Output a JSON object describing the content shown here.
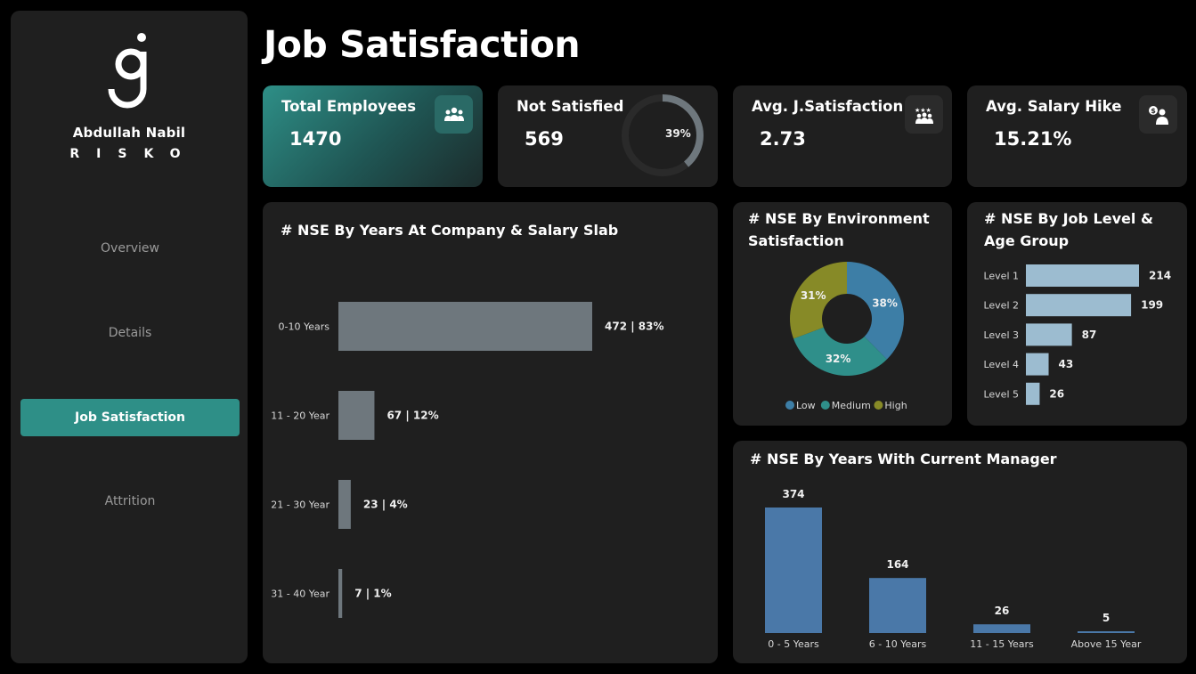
{
  "brand": {
    "name": "Abdullah Nabil",
    "subtitle": "RISKO"
  },
  "nav": [
    {
      "label": "Overview",
      "active": false
    },
    {
      "label": "Details",
      "active": false
    },
    {
      "label": "Job Satisfaction",
      "active": true
    },
    {
      "label": "Attrition",
      "active": false
    }
  ],
  "page_title": "Job Satisfaction",
  "kpis": {
    "total": {
      "title": "Total Employees",
      "value": "1470",
      "icon": "people-group-icon"
    },
    "not_satisfied": {
      "title": "Not Satisfied",
      "value": "569",
      "pct_label": "39%",
      "pct": 0.39
    },
    "avg_js": {
      "title": "Avg. J.Satisfaction",
      "value": "2.73",
      "icon": "star-team-icon"
    },
    "avg_hike": {
      "title": "Avg. Salary Hike",
      "value": "15.21%",
      "icon": "salary-person-icon"
    }
  },
  "colors": {
    "teal": "#2e8f87",
    "gray_bar": "#6e777d",
    "steel_blue": "#4a78a8",
    "light_blue": "#9cbcd0",
    "donut_low": "#3d7ea6",
    "donut_medium": "#2f8f8a",
    "donut_high": "#878a27"
  },
  "chart_data": [
    {
      "id": "years_company",
      "type": "bar",
      "orientation": "horizontal",
      "title": "# NSE By Years At Company & Salary Slab",
      "categories": [
        "0-10 Years",
        "11 - 20 Year",
        "21 - 30 Year",
        "31 - 40 Year"
      ],
      "values": [
        472,
        67,
        23,
        7
      ],
      "percents": [
        "83%",
        "12%",
        "4%",
        "1%"
      ]
    },
    {
      "id": "environment",
      "type": "pie",
      "title": "# NSE By Environment Satisfaction",
      "categories": [
        "Low",
        "Medium",
        "High"
      ],
      "values": [
        38,
        32,
        31
      ],
      "labels": [
        "38%",
        "32%",
        "31%"
      ],
      "legend": "bottom"
    },
    {
      "id": "job_level",
      "type": "bar",
      "orientation": "horizontal",
      "title": "# NSE By Job Level & Age Group",
      "categories": [
        "Level 1",
        "Level 2",
        "Level 3",
        "Level 4",
        "Level 5"
      ],
      "values": [
        214,
        199,
        87,
        43,
        26
      ]
    },
    {
      "id": "current_manager",
      "type": "bar",
      "title": "# NSE By Years With Current Manager",
      "categories": [
        "0 - 5 Years",
        "6 - 10 Years",
        "11 - 15 Years",
        "Above 15 Year"
      ],
      "values": [
        374,
        164,
        26,
        5
      ]
    }
  ]
}
